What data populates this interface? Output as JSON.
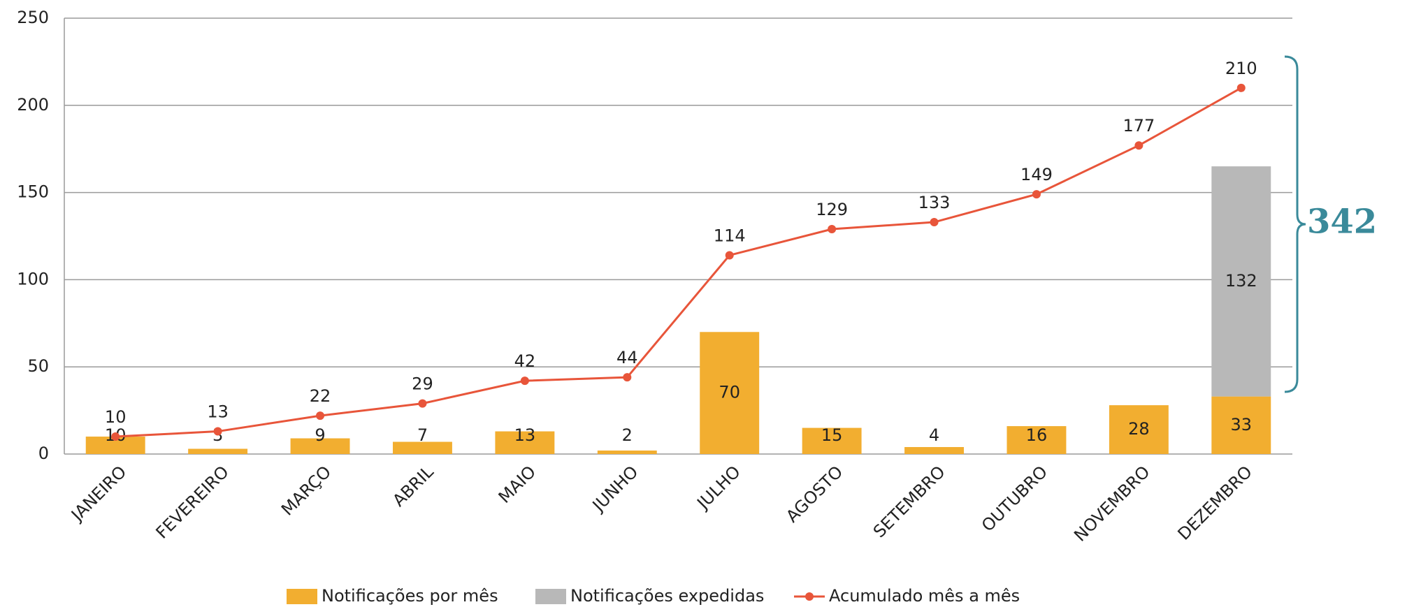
{
  "chart_data": {
    "type": "bar",
    "categories": [
      "JANEIRO",
      "FEVEREIRO",
      "MARÇO",
      "ABRIL",
      "MAIO",
      "JUNHO",
      "JULHO",
      "AGOSTO",
      "SETEMBRO",
      "OUTUBRO",
      "NOVEMBRO",
      "DEZEMBRO"
    ],
    "series": [
      {
        "name": "Notificações por mês",
        "type": "bar",
        "color": "#f2ae30",
        "values": [
          10,
          3,
          9,
          7,
          13,
          2,
          70,
          15,
          4,
          16,
          28,
          33
        ]
      },
      {
        "name": "Notificações expedidas",
        "type": "bar",
        "color": "#b8b8b8",
        "values": [
          null,
          null,
          null,
          null,
          null,
          null,
          null,
          null,
          null,
          null,
          null,
          132
        ]
      },
      {
        "name": "Acumulado mês a mês",
        "type": "line",
        "color": "#e8553a",
        "values": [
          10,
          13,
          22,
          29,
          42,
          44,
          114,
          129,
          133,
          149,
          177,
          210
        ]
      }
    ],
    "ylim": [
      0,
      250
    ],
    "yticks": [
      0,
      50,
      100,
      150,
      200,
      250
    ],
    "grid": true,
    "legend": "bottom",
    "annotation": 342
  }
}
